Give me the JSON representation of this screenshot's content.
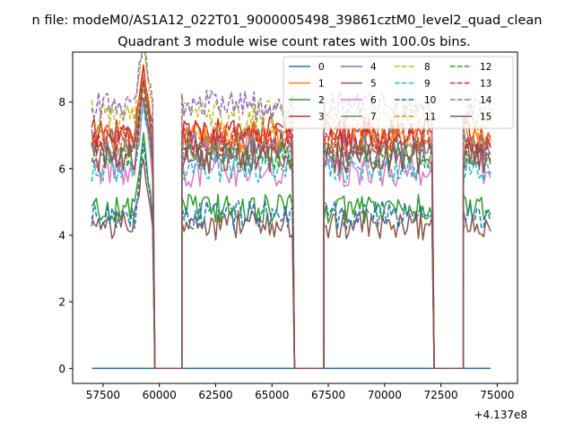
{
  "suptitle": "n file: modeM0/AS1A12_022T01_9000005498_39861cztM0_level2_quad_clean",
  "chart_data": {
    "type": "line",
    "title": "Quadrant 3 module wise count rates with 100.0s bins.",
    "xlabel": "",
    "ylabel": "",
    "x_offset_label": "+4.137e8",
    "xlim": [
      56150,
      75900
    ],
    "ylim": [
      -0.45,
      9.5
    ],
    "xticks": [
      57500,
      60000,
      62500,
      65000,
      67500,
      70000,
      72500,
      75000
    ],
    "yticks": [
      0,
      2,
      4,
      6,
      8
    ],
    "grid": false,
    "legend": {
      "placement": "top-right",
      "columns": 4
    },
    "segments": [
      {
        "start": 57000,
        "end": 59700,
        "off_end": 59800
      },
      {
        "start": 61000,
        "end": 65900,
        "off_end": 66000
      },
      {
        "start": 67300,
        "end": 72100,
        "off_end": 72200
      },
      {
        "start": 73500,
        "end": 74700,
        "off_end": 74700
      }
    ],
    "off_gaps": [
      [
        59800,
        61000
      ],
      [
        66000,
        67300
      ],
      [
        72200,
        73500
      ]
    ],
    "peak_spike": {
      "x": 59300,
      "y": 9.15
    },
    "series": [
      {
        "name": "0",
        "color": "#1f77b4",
        "dash": "solid",
        "level": 0.0
      },
      {
        "name": "1",
        "color": "#ff7f0e",
        "dash": "solid",
        "level": 6.9
      },
      {
        "name": "2",
        "color": "#2ca02c",
        "dash": "solid",
        "level": 4.8
      },
      {
        "name": "3",
        "color": "#d62728",
        "dash": "solid",
        "level": 7.1
      },
      {
        "name": "4",
        "color": "#9467bd",
        "dash": "solid",
        "level": 6.6
      },
      {
        "name": "5",
        "color": "#8c564b",
        "dash": "solid",
        "level": 4.3
      },
      {
        "name": "6",
        "color": "#e377c2",
        "dash": "solid",
        "level": 5.9
      },
      {
        "name": "7",
        "color": "#7f7f7f",
        "dash": "solid",
        "level": 6.8
      },
      {
        "name": "8",
        "color": "#bcbd22",
        "dash": "dashed",
        "level": 7.6
      },
      {
        "name": "9",
        "color": "#17becf",
        "dash": "dashed",
        "level": 6.0
      },
      {
        "name": "10",
        "color": "#1f77b4",
        "dash": "dashed",
        "level": 4.6
      },
      {
        "name": "11",
        "color": "#ff7f0e",
        "dash": "dashed",
        "level": 7.0
      },
      {
        "name": "12",
        "color": "#2ca02c",
        "dash": "dashed",
        "level": 6.4
      },
      {
        "name": "13",
        "color": "#d62728",
        "dash": "dashed",
        "level": 6.8
      },
      {
        "name": "14",
        "color": "#9467bd",
        "dash": "dashed",
        "level": 7.9
      },
      {
        "name": "15",
        "color": "#8c564b",
        "dash": "solid",
        "level": 6.3
      }
    ]
  }
}
